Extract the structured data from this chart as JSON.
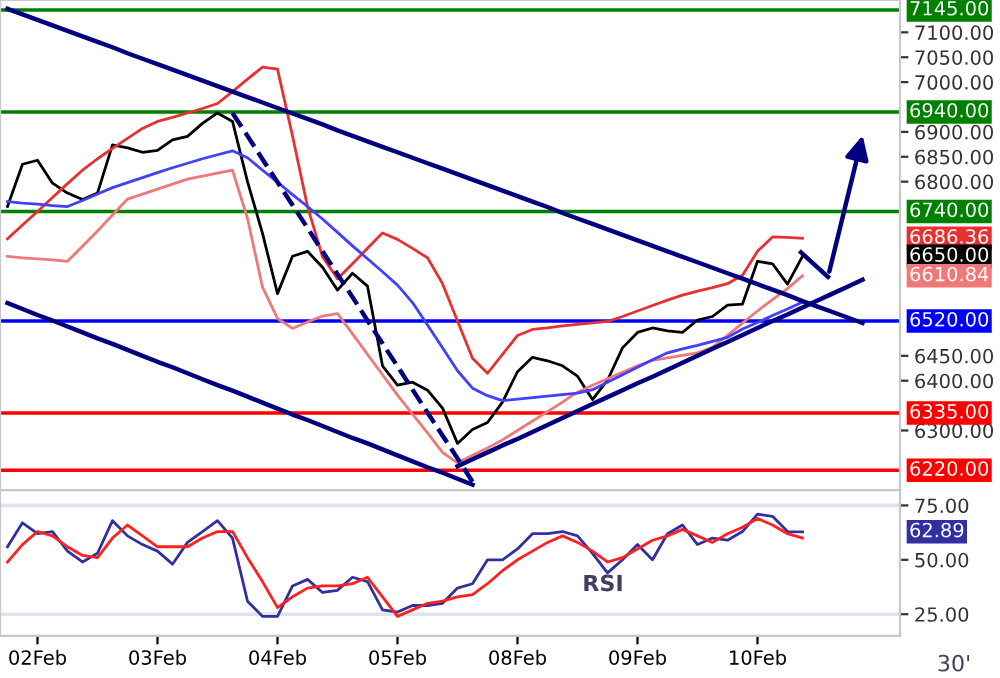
{
  "chart_data": [
    {
      "type": "line",
      "ylim": [
        6180,
        7165
      ],
      "tick_labels": "y",
      "legend": false,
      "grid": false,
      "yticks": [
        {
          "value": 6300,
          "label": "6300.00"
        },
        {
          "value": 6400,
          "label": "6400.00"
        },
        {
          "value": 6450,
          "label": "6450.00"
        },
        {
          "value": 6800,
          "label": "6800.00"
        },
        {
          "value": 6850,
          "label": "6850.00"
        },
        {
          "value": 6900,
          "label": "6900.00"
        },
        {
          "value": 7000,
          "label": "7000.00"
        },
        {
          "value": 7050,
          "label": "7050.00"
        },
        {
          "value": 7100,
          "label": "7100.00"
        }
      ],
      "series": [
        {
          "color": "#000000",
          "values": [
            6750,
            6835,
            6843,
            6797,
            6777,
            6764,
            6777,
            6874,
            6868,
            6859,
            6863,
            6884,
            6891,
            6917,
            6938,
            6921,
            6800,
            6696,
            6575,
            6650,
            6660,
            6628,
            6582,
            6616,
            6590,
            6430,
            6391,
            6397,
            6381,
            6345,
            6274,
            6302,
            6316,
            6357,
            6418,
            6447,
            6440,
            6430,
            6409,
            6362,
            6401,
            6466,
            6497,
            6506,
            6500,
            6497,
            6522,
            6529,
            6552,
            6554,
            6640,
            6635,
            6594,
            6650,
            null,
            null,
            null,
            null,
            null,
            null
          ]
        },
        {
          "color": "#e83030",
          "values": [
            6685,
            6713,
            6740,
            6768,
            6796,
            6823,
            6846,
            6867,
            6887,
            6907,
            6921,
            6929,
            6938,
            6947,
            6957,
            6981,
            7006,
            7030,
            7026,
            6892,
            6750,
            6649,
            6605,
            6635,
            6666,
            6697,
            6684,
            6666,
            6647,
            6595,
            6520,
            6445,
            6415,
            6453,
            6491,
            6503,
            6506,
            6510,
            6513,
            6516,
            6519,
            6529,
            6540,
            6551,
            6562,
            6572,
            6580,
            6587,
            6595,
            6612,
            6660,
            6689,
            6688,
            6686.36,
            null,
            null,
            null,
            null,
            null,
            null
          ]
        },
        {
          "color": "#f07878",
          "values": [
            6650,
            6647,
            6645,
            6643,
            6640,
            6670,
            6701,
            6733,
            6765,
            6775,
            6785,
            6795,
            6805,
            6811,
            6817,
            6823,
            6726,
            6588,
            6525,
            6505,
            6518,
            6530,
            6535,
            6494,
            6453,
            6412,
            6371,
            6333,
            6295,
            6256,
            6235,
            6250,
            6265,
            6281,
            6300,
            6319,
            6338,
            6357,
            6377,
            6391,
            6404,
            6417,
            6430,
            6441,
            6446,
            6451,
            6456,
            6467,
            6491,
            6516,
            6540,
            6563,
            6585,
            6610.84,
            null,
            null,
            null,
            null,
            null,
            null
          ]
        },
        {
          "color": "#4040ff",
          "values": [
            6760,
            6757,
            6755,
            6752,
            6750,
            6762,
            6775,
            6788,
            6798,
            6808,
            6818,
            6828,
            6837,
            6846,
            6854,
            6862,
            6848,
            6823,
            6799,
            6774,
            6750,
            6725,
            6698,
            6671,
            6645,
            6619,
            6592,
            6557,
            6512,
            6466,
            6420,
            6385,
            6370,
            6360,
            6363,
            6366,
            6369,
            6372,
            6375,
            6382,
            6397,
            6412,
            6427,
            6442,
            6456,
            6464,
            6471,
            6479,
            6487,
            6504,
            6517,
            6531,
            6544,
            6558,
            null,
            null,
            null,
            null,
            null,
            null
          ]
        },
        {
          "color": "#000080",
          "values": [
            7147,
            7136,
            7125,
            7114,
            7103,
            7092,
            7081,
            7070,
            7058,
            7047,
            7036,
            7025,
            7014,
            7003,
            6992,
            6981,
            6970,
            6959,
            6948,
            6937,
            6926,
            6915,
            6903,
            6892,
            6881,
            6870,
            6859,
            6848,
            6837,
            6826,
            6815,
            6804,
            6793,
            6782,
            6771,
            6760,
            6749,
            6737,
            6726,
            6715,
            6704,
            6693,
            6682,
            6671,
            6660,
            6649,
            6638,
            6627,
            6616,
            6605,
            6594,
            6583,
            6572,
            6560,
            6549,
            6538,
            6527,
            6516,
            null,
            null
          ]
        },
        {
          "color": "#000080",
          "values": [
            6556,
            6544,
            6532,
            6521,
            6509,
            6497,
            6485,
            6474,
            6462,
            6450,
            6438,
            6427,
            6415,
            6403,
            6391,
            6380,
            6368,
            6356,
            6344,
            6332,
            6321,
            6309,
            6297,
            6285,
            6274,
            6262,
            6250,
            6238,
            6226,
            6215,
            6203,
            6191,
            null,
            null,
            null,
            null,
            null,
            null,
            null,
            null,
            null,
            null,
            null,
            null,
            null,
            null,
            null,
            null,
            null,
            null,
            null,
            null,
            null,
            null,
            null,
            null,
            null,
            null,
            null,
            null
          ]
        },
        {
          "color": "#000080",
          "line_style": "dashed",
          "values": [
            null,
            null,
            null,
            null,
            null,
            null,
            null,
            null,
            null,
            null,
            null,
            null,
            null,
            null,
            null,
            6938,
            6892,
            6845,
            6799,
            6753,
            6707,
            6660,
            6614,
            6568,
            6521,
            6475,
            6429,
            6382,
            6336,
            6290,
            6244,
            6197,
            null,
            null,
            null,
            null,
            null,
            null,
            null,
            null,
            null,
            null,
            null,
            null,
            null,
            null,
            null,
            null,
            null,
            null,
            null,
            null,
            null,
            null,
            null,
            null,
            null,
            null,
            null,
            null
          ]
        },
        {
          "color": "#000080",
          "values": [
            null,
            null,
            null,
            null,
            null,
            null,
            null,
            null,
            null,
            null,
            null,
            null,
            null,
            null,
            null,
            null,
            null,
            null,
            null,
            null,
            null,
            null,
            null,
            null,
            null,
            null,
            null,
            null,
            null,
            null,
            6228,
            6242,
            6256,
            6270,
            6283,
            6297,
            6311,
            6325,
            6339,
            6353,
            6367,
            6381,
            6395,
            6408,
            6422,
            6436,
            6450,
            6464,
            6478,
            6492,
            6506,
            6520,
            6533,
            6547,
            6561,
            6575,
            6589,
            6603,
            null,
            null
          ]
        }
      ],
      "ref_lines": [
        {
          "axis": "y",
          "value": 7145,
          "label": "7145.00",
          "color": "#008000"
        },
        {
          "axis": "y",
          "value": 6940,
          "label": "6940.00",
          "color": "#008000"
        },
        {
          "axis": "y",
          "value": 6740,
          "label": "6740.00",
          "color": "#008000"
        },
        {
          "axis": "y",
          "value": 6520,
          "label": "6520.00",
          "color": "#0000ff"
        },
        {
          "axis": "y",
          "value": 6335,
          "label": "6335.00",
          "color": "#ff0000"
        },
        {
          "axis": "y",
          "value": 6220,
          "label": "6220.00",
          "color": "#ff0000"
        }
      ],
      "annotations": [
        "6686.36",
        "6650.00",
        "6610.84"
      ]
    },
    {
      "type": "line",
      "ylim": [
        15,
        82
      ],
      "legend": false,
      "grid": false,
      "categories": [
        null,
        null,
        "02Feb",
        null,
        null,
        null,
        null,
        null,
        null,
        null,
        "03Feb",
        null,
        null,
        null,
        null,
        null,
        null,
        null,
        "04Feb",
        null,
        null,
        null,
        null,
        null,
        null,
        null,
        "05Feb",
        null,
        null,
        null,
        null,
        null,
        null,
        null,
        "08Feb",
        null,
        null,
        null,
        null,
        null,
        null,
        null,
        "09Feb",
        null,
        null,
        null,
        null,
        null,
        null,
        null,
        "10Feb",
        null,
        null,
        null,
        null,
        null,
        null,
        null,
        null,
        null
      ],
      "yticks": [
        {
          "value": 25,
          "label": "25.00"
        },
        {
          "value": 50,
          "label": "50.00"
        },
        {
          "value": 75,
          "label": "75.00"
        }
      ],
      "series": [
        {
          "color": "#3030a0",
          "values": [
            56,
            67,
            62,
            63,
            54,
            49,
            53,
            68,
            61,
            57,
            54,
            48,
            58,
            63,
            68,
            60,
            31,
            24,
            24,
            38,
            41,
            35,
            36,
            42,
            40,
            27,
            26,
            29,
            29,
            30,
            37,
            39,
            50,
            50,
            55,
            62,
            62,
            63,
            61,
            53,
            44,
            50,
            57,
            50,
            62,
            66,
            57,
            60,
            59,
            63,
            71,
            70,
            63,
            62.89,
            null,
            null,
            null,
            null,
            null,
            null
          ]
        },
        {
          "color": "#ff2020",
          "values": [
            49,
            57,
            63,
            61,
            56,
            52,
            51,
            60,
            66,
            61,
            56,
            56,
            56,
            60,
            63,
            63,
            51,
            40,
            28,
            33,
            37,
            38,
            38,
            39,
            42,
            33,
            24,
            27,
            30,
            31,
            33,
            34,
            39,
            45,
            50,
            54,
            58,
            61,
            58,
            54,
            49,
            51,
            55,
            59,
            61,
            64,
            61,
            58,
            62,
            65,
            69,
            66,
            62,
            60,
            null,
            null,
            null,
            null,
            null,
            null
          ]
        }
      ],
      "ref_lines": [
        {
          "axis": "y",
          "value": 75,
          "color": "#dde4f0"
        },
        {
          "axis": "y",
          "value": 25,
          "color": "#dde4f0"
        }
      ],
      "annotations": [
        "RSI",
        "30'",
        "62.89"
      ]
    }
  ]
}
